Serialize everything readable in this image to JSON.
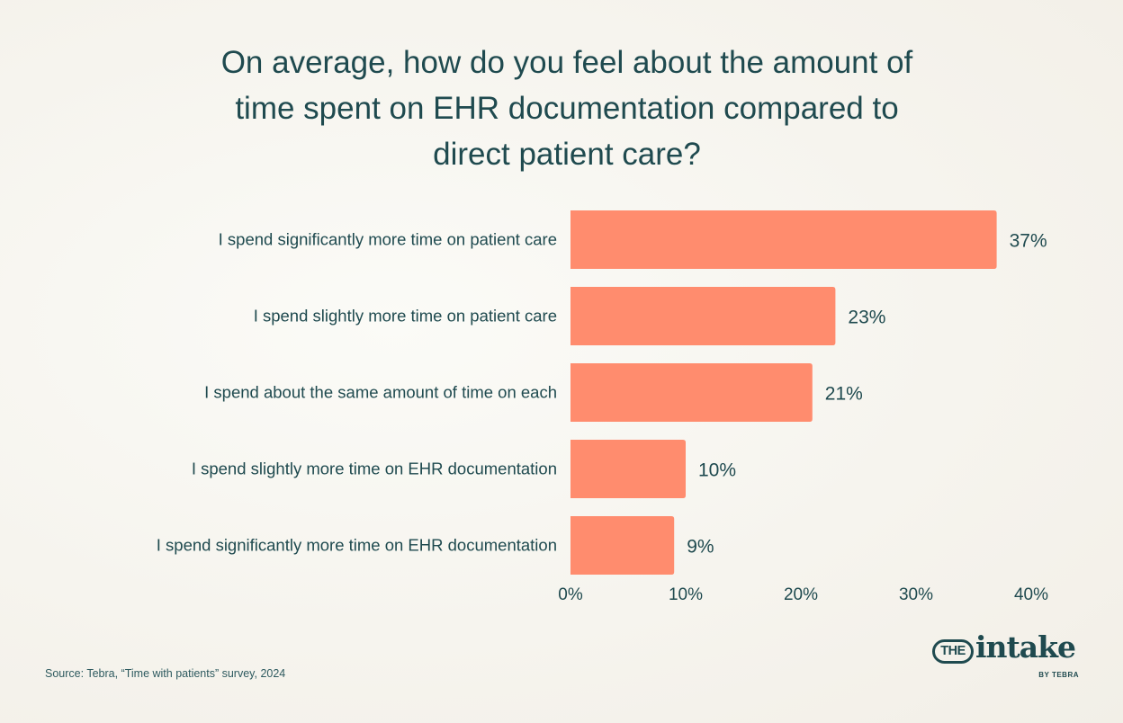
{
  "title_lines": [
    "On average, how do you feel about the amount of",
    "time spent on EHR documentation compared to",
    "direct patient care?"
  ],
  "chart_data": {
    "type": "bar",
    "orientation": "horizontal",
    "title": "On average, how do you feel about the amount of time spent on EHR documentation compared to direct patient care?",
    "categories": [
      "I spend significantly more time on patient care",
      "I spend slightly more time on patient care",
      "I spend about the same amount of time on each",
      "I spend slightly more time on EHR documentation",
      "I spend significantly more time on EHR documentation"
    ],
    "values": [
      37,
      23,
      21,
      10,
      9
    ],
    "value_labels": [
      "37%",
      "23%",
      "21%",
      "10%",
      "9%"
    ],
    "xlim": [
      0,
      40
    ],
    "x_ticks": [
      0,
      10,
      20,
      30,
      40
    ],
    "x_tick_labels": [
      "0%",
      "10%",
      "20%",
      "30%",
      "40%"
    ],
    "grid": false,
    "legend": "none",
    "bar_color": "#ff8c6e"
  },
  "source": "Source: Tebra, “Time with patients” survey, 2024",
  "logo": {
    "badge": "THE",
    "word": "intake",
    "byline": "BY TEBRA"
  },
  "colors": {
    "text": "#1f4a4f",
    "bar": "#ff8c6e"
  }
}
